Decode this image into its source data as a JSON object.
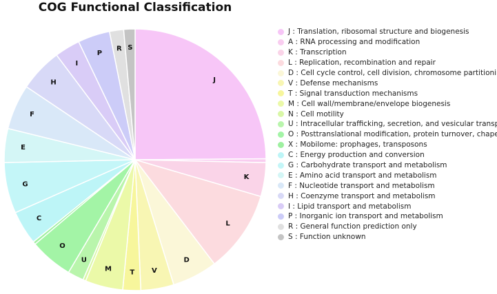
{
  "chart_data": {
    "type": "pie",
    "title": "COG Functional Classification",
    "slices": [
      {
        "label": "J",
        "name": "Translation, ribosomal structure and biogenesis",
        "value": 21.4,
        "color": "#f7c6f7"
      },
      {
        "label": "A",
        "name": "RNA processing and modification",
        "value": 0.4,
        "color": "#f9cdf0"
      },
      {
        "label": "K",
        "name": "Transcription",
        "value": 3.6,
        "color": "#fad4e8"
      },
      {
        "label": "L",
        "name": "Replication, recombination and repair",
        "value": 8.7,
        "color": "#fcdbdf"
      },
      {
        "label": "D",
        "name": "Cell cycle control, cell division, chromosome partitioning",
        "value": 4.8,
        "color": "#fbf7d8"
      },
      {
        "label": "V",
        "name": "Defense mechanisms",
        "value": 3.5,
        "color": "#f8f6b3"
      },
      {
        "label": "T",
        "name": "Signal transduction mechanisms",
        "value": 1.9,
        "color": "#f7f69c"
      },
      {
        "label": "M",
        "name": "Cell wall/membrane/envelope biogenesis",
        "value": 4.0,
        "color": "#ebf9a8"
      },
      {
        "label": "N",
        "name": "Cell motility",
        "value": 0.3,
        "color": "#d9f7a6"
      },
      {
        "label": "U",
        "name": "Intracellular trafficking, secretion, and vesicular transport",
        "value": 1.7,
        "color": "#b9f5ac"
      },
      {
        "label": "O",
        "name": "Posttranslational modification, protein turnover, chaperones",
        "value": 4.6,
        "color": "#a3f4a6"
      },
      {
        "label": "X",
        "name": "Mobilome: prophages, transposons",
        "value": 0.3,
        "color": "#9ef0a0"
      },
      {
        "label": "C",
        "name": "Energy production and conversion",
        "value": 3.6,
        "color": "#bdf5f7"
      },
      {
        "label": "G",
        "name": "Carbohydrate transport and metabolism",
        "value": 5.4,
        "color": "#c4f6f8"
      },
      {
        "label": "E",
        "name": "Amino acid transport and metabolism",
        "value": 3.6,
        "color": "#d4f6f6"
      },
      {
        "label": "F",
        "name": "Nucleotide transport and metabolism",
        "value": 4.8,
        "color": "#d9e8f8"
      },
      {
        "label": "H",
        "name": "Coenzyme transport and metabolism",
        "value": 4.6,
        "color": "#d8d9f7"
      },
      {
        "label": "I",
        "name": "Lipid transport and metabolism",
        "value": 2.7,
        "color": "#d9ccf7"
      },
      {
        "label": "P",
        "name": "Inorganic ion transport and metabolism",
        "value": 3.4,
        "color": "#ccccf8"
      },
      {
        "label": "R",
        "name": "General function prediction only",
        "value": 1.5,
        "color": "#e0e0e0"
      },
      {
        "label": "S",
        "name": "Function unknown",
        "value": 1.2,
        "color": "#c4c4c4"
      }
    ],
    "legend_position": "right"
  }
}
